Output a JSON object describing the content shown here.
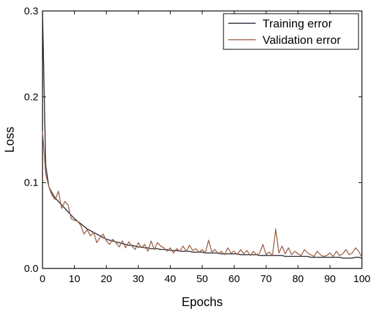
{
  "chart_data": {
    "type": "line",
    "title": "",
    "xlabel": "Epochs",
    "ylabel": "Loss",
    "xlim": [
      0,
      100
    ],
    "ylim": [
      0,
      0.3
    ],
    "x_ticks": [
      0,
      10,
      20,
      30,
      40,
      50,
      60,
      70,
      80,
      90,
      100
    ],
    "y_ticks": [
      0.0,
      0.1,
      0.2,
      0.3
    ],
    "x_tick_labels": [
      "0",
      "10",
      "20",
      "30",
      "40",
      "50",
      "60",
      "70",
      "80",
      "90",
      "100"
    ],
    "y_tick_labels": [
      "0.0",
      "0.1",
      "0.2",
      "0.3"
    ],
    "grid": false,
    "legend_position": "top-right",
    "series": [
      {
        "name": "Training error",
        "color": "#2b2b3b",
        "x": [
          0,
          1,
          2,
          3,
          4,
          5,
          6,
          7,
          8,
          9,
          10,
          11,
          12,
          13,
          14,
          15,
          16,
          17,
          18,
          19,
          20,
          21,
          22,
          23,
          24,
          25,
          26,
          27,
          28,
          29,
          30,
          31,
          32,
          33,
          34,
          35,
          36,
          37,
          38,
          39,
          40,
          41,
          42,
          43,
          44,
          45,
          46,
          47,
          48,
          49,
          50,
          51,
          52,
          53,
          54,
          55,
          56,
          57,
          58,
          59,
          60,
          61,
          62,
          63,
          64,
          65,
          66,
          67,
          68,
          69,
          70,
          71,
          72,
          73,
          74,
          75,
          76,
          77,
          78,
          79,
          80,
          81,
          82,
          83,
          84,
          85,
          86,
          87,
          88,
          89,
          90,
          91,
          92,
          93,
          94,
          95,
          96,
          97,
          98,
          99,
          100
        ],
        "values": [
          0.3,
          0.12,
          0.095,
          0.088,
          0.082,
          0.078,
          0.074,
          0.07,
          0.066,
          0.062,
          0.058,
          0.055,
          0.052,
          0.049,
          0.046,
          0.044,
          0.042,
          0.04,
          0.038,
          0.036,
          0.034,
          0.033,
          0.032,
          0.031,
          0.03,
          0.029,
          0.028,
          0.027,
          0.027,
          0.026,
          0.025,
          0.025,
          0.024,
          0.024,
          0.023,
          0.023,
          0.023,
          0.022,
          0.022,
          0.022,
          0.021,
          0.021,
          0.021,
          0.02,
          0.02,
          0.02,
          0.02,
          0.019,
          0.019,
          0.019,
          0.019,
          0.018,
          0.018,
          0.018,
          0.018,
          0.018,
          0.017,
          0.017,
          0.017,
          0.017,
          0.017,
          0.017,
          0.016,
          0.016,
          0.016,
          0.016,
          0.016,
          0.016,
          0.015,
          0.015,
          0.015,
          0.015,
          0.015,
          0.015,
          0.015,
          0.015,
          0.014,
          0.014,
          0.014,
          0.014,
          0.014,
          0.014,
          0.014,
          0.014,
          0.013,
          0.013,
          0.013,
          0.013,
          0.013,
          0.013,
          0.013,
          0.013,
          0.013,
          0.013,
          0.012,
          0.012,
          0.012,
          0.012,
          0.013,
          0.013,
          0.012
        ]
      },
      {
        "name": "Validation error",
        "color": "#a0674f",
        "x": [
          0,
          1,
          2,
          3,
          4,
          5,
          6,
          7,
          8,
          9,
          10,
          11,
          12,
          13,
          14,
          15,
          16,
          17,
          18,
          19,
          20,
          21,
          22,
          23,
          24,
          25,
          26,
          27,
          28,
          29,
          30,
          31,
          32,
          33,
          34,
          35,
          36,
          37,
          38,
          39,
          40,
          41,
          42,
          43,
          44,
          45,
          46,
          47,
          48,
          49,
          50,
          51,
          52,
          53,
          54,
          55,
          56,
          57,
          58,
          59,
          60,
          61,
          62,
          63,
          64,
          65,
          66,
          67,
          68,
          69,
          70,
          71,
          72,
          73,
          74,
          75,
          76,
          77,
          78,
          79,
          80,
          81,
          82,
          83,
          84,
          85,
          86,
          87,
          88,
          89,
          90,
          91,
          92,
          93,
          94,
          95,
          96,
          97,
          98,
          99,
          100
        ],
        "values": [
          0.16,
          0.11,
          0.095,
          0.085,
          0.08,
          0.09,
          0.07,
          0.078,
          0.074,
          0.058,
          0.056,
          0.055,
          0.05,
          0.04,
          0.045,
          0.038,
          0.042,
          0.03,
          0.036,
          0.04,
          0.032,
          0.028,
          0.034,
          0.03,
          0.025,
          0.032,
          0.024,
          0.031,
          0.026,
          0.022,
          0.03,
          0.024,
          0.028,
          0.02,
          0.032,
          0.022,
          0.03,
          0.026,
          0.024,
          0.02,
          0.024,
          0.018,
          0.023,
          0.02,
          0.026,
          0.02,
          0.027,
          0.021,
          0.023,
          0.019,
          0.022,
          0.018,
          0.033,
          0.019,
          0.022,
          0.017,
          0.02,
          0.016,
          0.024,
          0.018,
          0.02,
          0.016,
          0.022,
          0.017,
          0.021,
          0.015,
          0.02,
          0.016,
          0.018,
          0.028,
          0.016,
          0.019,
          0.015,
          0.046,
          0.018,
          0.026,
          0.017,
          0.024,
          0.016,
          0.02,
          0.017,
          0.015,
          0.022,
          0.018,
          0.016,
          0.014,
          0.02,
          0.016,
          0.014,
          0.015,
          0.018,
          0.014,
          0.02,
          0.015,
          0.017,
          0.022,
          0.016,
          0.018,
          0.024,
          0.02,
          0.013
        ]
      }
    ]
  }
}
